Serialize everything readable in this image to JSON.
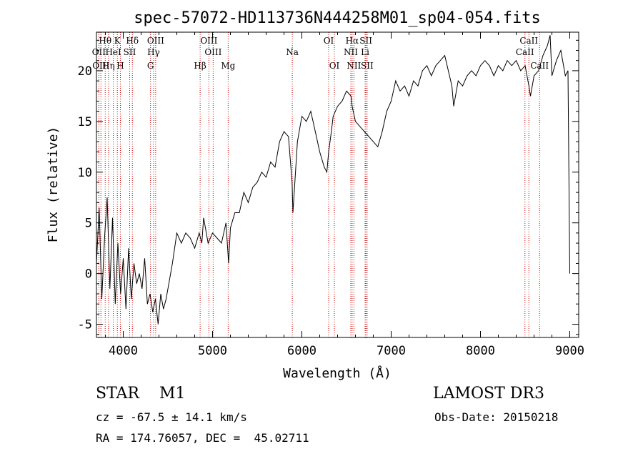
{
  "chart_data": {
    "type": "line",
    "title": "spec-57072-HD113736N444258M01_sp04-054.fits",
    "xlabel": "Wavelength (Å)",
    "ylabel": "Flux (relative)",
    "xlim": [
      3700,
      9100
    ],
    "ylim": [
      -6.3,
      23.8
    ],
    "xticks": [
      4000,
      5000,
      6000,
      7000,
      8000,
      9000
    ],
    "yticks": [
      -5,
      0,
      5,
      10,
      15,
      20
    ],
    "grid": false,
    "series": [
      {
        "name": "spectrum",
        "color": "#000000",
        "x": [
          3700,
          3730,
          3760,
          3790,
          3820,
          3850,
          3880,
          3910,
          3940,
          3970,
          4000,
          4030,
          4060,
          4090,
          4120,
          4150,
          4180,
          4210,
          4240,
          4270,
          4300,
          4330,
          4360,
          4390,
          4420,
          4450,
          4480,
          4510,
          4550,
          4600,
          4650,
          4700,
          4750,
          4800,
          4850,
          4880,
          4900,
          4950,
          5000,
          5050,
          5100,
          5150,
          5180,
          5200,
          5250,
          5300,
          5350,
          5400,
          5450,
          5500,
          5550,
          5600,
          5650,
          5700,
          5750,
          5800,
          5850,
          5890,
          5900,
          5950,
          6000,
          6050,
          6100,
          6150,
          6200,
          6250,
          6280,
          6300,
          6330,
          6350,
          6400,
          6450,
          6500,
          6550,
          6563,
          6600,
          6650,
          6700,
          6750,
          6800,
          6850,
          6900,
          6950,
          7000,
          7050,
          7100,
          7150,
          7200,
          7250,
          7300,
          7350,
          7400,
          7450,
          7500,
          7550,
          7600,
          7640,
          7680,
          7700,
          7750,
          7800,
          7850,
          7900,
          7950,
          8000,
          8050,
          8100,
          8150,
          8200,
          8250,
          8300,
          8350,
          8400,
          8450,
          8500,
          8542,
          8560,
          8600,
          8650,
          8700,
          8750,
          8780,
          8800,
          8850,
          8900,
          8950,
          8980,
          9000
        ],
        "y": [
          1.0,
          6.5,
          -2.5,
          3.5,
          7.5,
          -1.5,
          5.5,
          -3.0,
          3.0,
          -2.0,
          1.5,
          -3.5,
          2.5,
          -2.5,
          1.0,
          -1.0,
          0.0,
          -1.5,
          1.5,
          -3.0,
          -2.0,
          -3.8,
          -2.5,
          -5.0,
          -2.0,
          -3.5,
          -2.5,
          -1.0,
          1.0,
          4.0,
          3.0,
          4.0,
          3.5,
          2.5,
          4.0,
          3.0,
          5.5,
          3.0,
          4.0,
          3.5,
          3.0,
          5.0,
          1.0,
          4.5,
          6.0,
          6.0,
          8.0,
          7.0,
          8.5,
          9.0,
          10.0,
          9.5,
          11.0,
          10.5,
          13.0,
          14.0,
          13.5,
          9.0,
          6.0,
          13.0,
          15.5,
          15.0,
          16.0,
          14.0,
          12.0,
          10.5,
          10.0,
          12.0,
          14.0,
          15.5,
          16.5,
          17.0,
          18.0,
          17.5,
          16.5,
          15.0,
          14.5,
          14.0,
          13.5,
          13.0,
          12.5,
          14.0,
          16.0,
          17.0,
          19.0,
          18.0,
          18.5,
          17.5,
          19.0,
          18.5,
          20.0,
          20.5,
          19.5,
          20.5,
          21.0,
          21.5,
          20.0,
          18.5,
          16.5,
          19.0,
          18.5,
          19.5,
          20.0,
          19.5,
          20.5,
          21.0,
          20.5,
          19.5,
          20.5,
          20.0,
          21.0,
          20.5,
          21.0,
          20.0,
          20.5,
          18.5,
          17.5,
          19.5,
          20.0,
          21.5,
          22.5,
          23.5,
          19.5,
          21.0,
          22.0,
          19.5,
          20.0,
          0.0
        ]
      }
    ],
    "line_markers": [
      {
        "label": "Hθ",
        "wavelength": 3798,
        "row": 1
      },
      {
        "label": "OII",
        "wavelength": 3727,
        "row": 2
      },
      {
        "label": "OIII",
        "wavelength": 3750,
        "row": 3
      },
      {
        "label": "Hη",
        "wavelength": 3835,
        "row": 3
      },
      {
        "label": "HeI",
        "wavelength": 3889,
        "row": 2
      },
      {
        "label": "K",
        "wavelength": 3934,
        "row": 1
      },
      {
        "label": "H",
        "wavelength": 3968,
        "row": 3
      },
      {
        "label": "SII",
        "wavelength": 4072,
        "row": 2
      },
      {
        "label": "Hδ",
        "wavelength": 4102,
        "row": 1
      },
      {
        "label": "OIII",
        "wavelength": 4363,
        "row": 1
      },
      {
        "label": "Hγ",
        "wavelength": 4340,
        "row": 2
      },
      {
        "label": "G",
        "wavelength": 4305,
        "row": 3
      },
      {
        "label": "Hβ",
        "wavelength": 4861,
        "row": 3
      },
      {
        "label": "OIII",
        "wavelength": 4959,
        "row": 1
      },
      {
        "label": "OIII",
        "wavelength": 5007,
        "row": 2
      },
      {
        "label": "Mg",
        "wavelength": 5175,
        "row": 3
      },
      {
        "label": "Na",
        "wavelength": 5893,
        "row": 2
      },
      {
        "label": "OI",
        "wavelength": 6300,
        "row": 1
      },
      {
        "label": "OI",
        "wavelength": 6364,
        "row": 3
      },
      {
        "label": "Hα",
        "wavelength": 6563,
        "row": 1
      },
      {
        "label": "NII",
        "wavelength": 6548,
        "row": 2
      },
      {
        "label": "NII",
        "wavelength": 6583,
        "row": 3
      },
      {
        "label": "SII",
        "wavelength": 6717,
        "row": 1
      },
      {
        "label": "Li",
        "wavelength": 6708,
        "row": 2
      },
      {
        "label": "SII",
        "wavelength": 6731,
        "row": 3
      },
      {
        "label": "CaII",
        "wavelength": 8542,
        "row": 1
      },
      {
        "label": "CaII",
        "wavelength": 8498,
        "row": 2
      },
      {
        "label": "CaII",
        "wavelength": 8662,
        "row": 3
      }
    ]
  },
  "info": {
    "object_class": "STAR    M1",
    "survey": "LAMOST DR3",
    "cz_line": "cz = -67.5 ± 14.1 km/s",
    "obs_date": "Obs-Date: 20150218",
    "radec": "RA = 174.76057, DEC =  45.02711"
  }
}
